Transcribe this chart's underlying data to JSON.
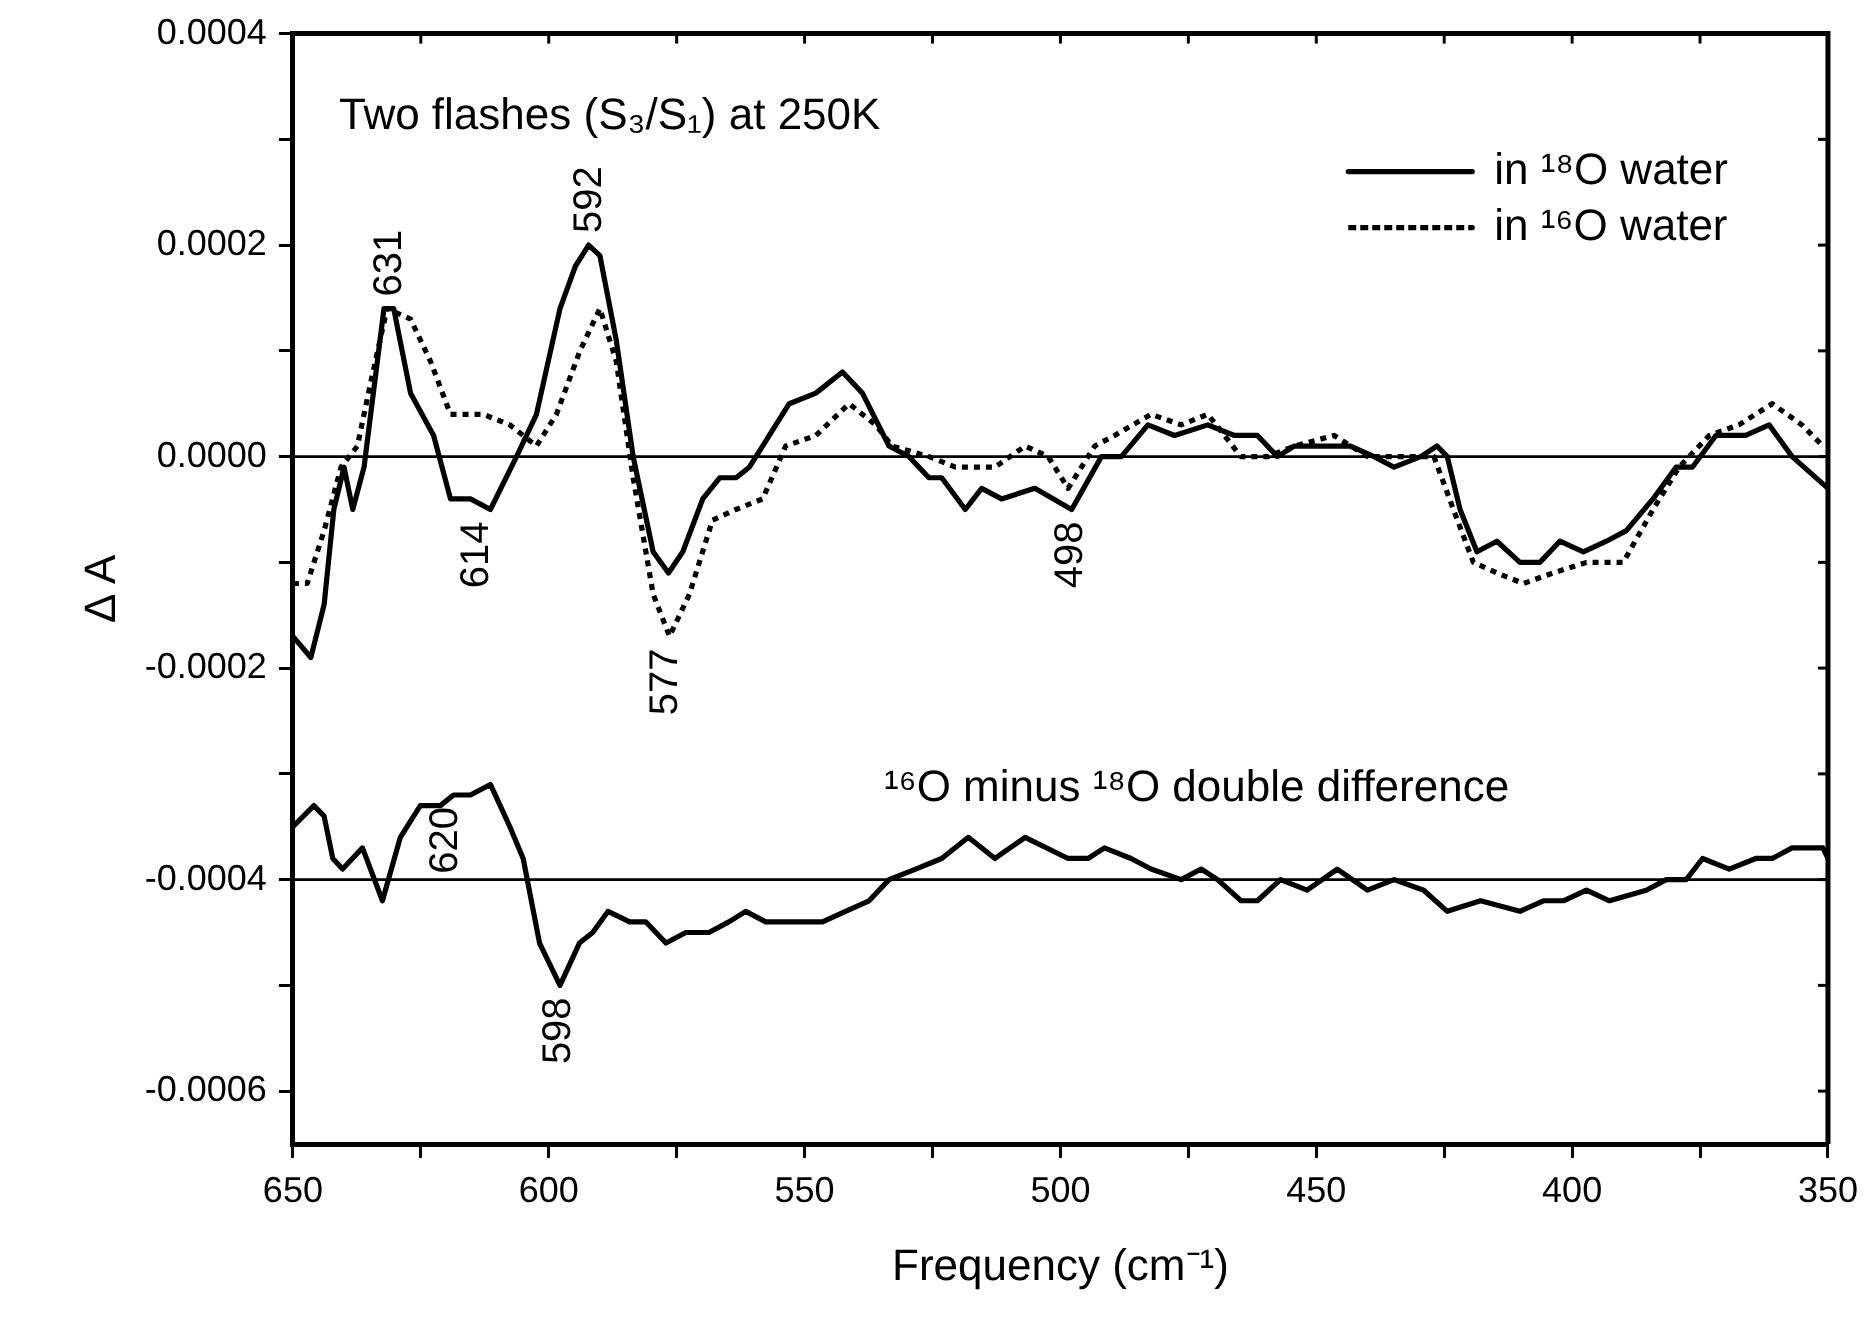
{
  "chart_data": {
    "type": "line",
    "xlabel": "Frequency (cm⁻¹)",
    "ylabel": "Δ A",
    "xlim": [
      650,
      350
    ],
    "xticks": [
      650,
      {
        "value": 625,
        "label": null
      },
      600,
      {
        "value": 575,
        "label": null
      },
      550,
      {
        "value": 525,
        "label": null
      },
      500,
      {
        "value": 475,
        "label": null
      },
      450,
      {
        "value": 425,
        "label": null
      },
      400,
      {
        "value": 375,
        "label": null
      },
      350
    ],
    "ylim": [
      -0.00065,
      0.0004
    ],
    "yticks": [
      {
        "value": -0.0006,
        "label": "-0.0006"
      },
      {
        "value": -0.0005,
        "label": null
      },
      {
        "value": -0.0004,
        "label": "-0.0004"
      },
      {
        "value": -0.0003,
        "label": null
      },
      {
        "value": -0.0002,
        "label": "-0.0002"
      },
      {
        "value": -0.0001,
        "label": null
      },
      {
        "value": 0,
        "label": "0.0000"
      },
      {
        "value": 0.0001,
        "label": null
      },
      {
        "value": 0.0002,
        "label": "0.0002"
      },
      {
        "value": 0.0003,
        "label": null
      },
      {
        "value": 0.0004,
        "label": "0.0004"
      }
    ],
    "grid": false,
    "legend": "top right",
    "marker": "none",
    "series": [
      {
        "name": "in ¹⁸O water",
        "color": "#000000",
        "line_style": "solid",
        "x": [
          650,
          646.5,
          643.9,
          642,
          640,
          638.3,
          636.1,
          632.2,
          630.3,
          627,
          622.5,
          619.2,
          615.3,
          611.4,
          606.3,
          602.4,
          597.8,
          594.8,
          592.2,
          590,
          586.8,
          583.5,
          579.6,
          576.6,
          573.8,
          569.9,
          566.6,
          563.4,
          560.8,
          556.9,
          553,
          547.8,
          542.6,
          538.7,
          533.5,
          529.6,
          525.7,
          523.2,
          518.6,
          515.4,
          511.5,
          505,
          497.8,
          492,
          488.1,
          482.9,
          477.7,
          471.2,
          466,
          461.5,
          457.6,
          454.3,
          449.1,
          443.3,
          438.7,
          434.8,
          429.6,
          426.4,
          424.4,
          421.9,
          418.6,
          414.7,
          410.2,
          406.3,
          402.4,
          397.8,
          393.3,
          389.4,
          384.2,
          379.7,
          376.5,
          371.9,
          366.1,
          361.5,
          357,
          350
        ],
        "values": [
          -0.00017,
          -0.00019,
          -0.00014,
          -5e-05,
          -1e-05,
          -5e-05,
          -1e-05,
          0.00014,
          0.00014,
          6e-05,
          2e-05,
          -4e-05,
          -4e-05,
          -5e-05,
          0,
          4e-05,
          0.00014,
          0.00018,
          0.0002,
          0.00019,
          0.00011,
          0,
          -9e-05,
          -0.00011,
          -9e-05,
          -4e-05,
          -2e-05,
          -2e-05,
          -1e-05,
          2e-05,
          5e-05,
          6e-05,
          8e-05,
          6e-05,
          1e-05,
          0,
          -2e-05,
          -2e-05,
          -5e-05,
          -3e-05,
          -4e-05,
          -3e-05,
          -5e-05,
          0,
          0,
          3e-05,
          2e-05,
          3e-05,
          2e-05,
          2e-05,
          0,
          1e-05,
          1e-05,
          1e-05,
          0,
          -1e-05,
          0,
          1e-05,
          0,
          -5e-05,
          -9e-05,
          -8e-05,
          -0.0001,
          -0.0001,
          -8e-05,
          -9e-05,
          -8e-05,
          -7e-05,
          -4e-05,
          -1e-05,
          -1e-05,
          2e-05,
          2e-05,
          3e-05,
          0,
          -3e-05
        ]
      },
      {
        "name": "in ¹⁶O water",
        "color": "#000000",
        "line_style": "dotted",
        "x": [
          650,
          647.2,
          643.9,
          640.6,
          637.4,
          634.8,
          631.6,
          627,
          623.1,
          619.2,
          612.8,
          607.6,
          602.4,
          598.5,
          593.9,
          590,
          586.8,
          583.5,
          579.6,
          576.4,
          572.5,
          568,
          563.4,
          558.2,
          553.7,
          547.8,
          541.3,
          536.1,
          532.9,
          525.7,
          520.5,
          512.8,
          506.9,
          502.4,
          498.5,
          493.3,
          489.4,
          482.3,
          476.4,
          471.2,
          464.7,
          459.5,
          454.3,
          446.5,
          440,
          433.6,
          427,
          423.2,
          419.3,
          414.7,
          409.5,
          403.7,
          397.2,
          390,
          384.2,
          379.1,
          373.2,
          367.4,
          360.9,
          355.1,
          351
        ],
        "values": [
          -0.00012,
          -0.00012,
          -7e-05,
          -1e-05,
          1e-05,
          7e-05,
          0.00014,
          0.00013,
          9e-05,
          4e-05,
          4e-05,
          3e-05,
          1e-05,
          4e-05,
          0.0001,
          0.00014,
          9e-05,
          -2e-05,
          -0.00013,
          -0.00017,
          -0.00013,
          -6e-05,
          -5e-05,
          -4e-05,
          1e-05,
          2e-05,
          5e-05,
          3e-05,
          1e-05,
          0,
          -1e-05,
          -1e-05,
          1e-05,
          0,
          -3e-05,
          1e-05,
          2e-05,
          4e-05,
          3e-05,
          4e-05,
          0,
          0,
          1e-05,
          2e-05,
          0,
          0,
          0,
          -5e-05,
          -0.0001,
          -0.00011,
          -0.00012,
          -0.00011,
          -0.0001,
          -0.0001,
          -5e-05,
          -1e-05,
          2e-05,
          3e-05,
          5e-05,
          3e-05,
          1e-05
        ]
      },
      {
        "color": "#000000",
        "line_style": "solid",
        "x": [
          650,
          645.9,
          643.9,
          642.2,
          640.3,
          636.4,
          632.5,
          629,
          625.1,
          621.2,
          618.6,
          615.3,
          611.4,
          607.6,
          605,
          601.8,
          597.8,
          594,
          591.4,
          588.4,
          584.2,
          581,
          577.1,
          573.2,
          568.7,
          564.8,
          561.5,
          557.6,
          553.7,
          546.5,
          542,
          537.4,
          533.5,
          528.3,
          523.2,
          518,
          512.8,
          506.9,
          498.5,
          494.6,
          491.4,
          486.2,
          482.3,
          476.4,
          472.5,
          469.3,
          464.7,
          461.5,
          457,
          451.8,
          445.9,
          440,
          434.8,
          429,
          424.4,
          417.9,
          410.2,
          405.6,
          401.7,
          397.2,
          392.7,
          385.5,
          381.6,
          377.7,
          374.5,
          369.3,
          364.1,
          360.9,
          357,
          353.1,
          351,
          350
        ],
        "values": [
          -0.00035,
          -0.00033,
          -0.00034,
          -0.00038,
          -0.00039,
          -0.00037,
          -0.00042,
          -0.00036,
          -0.00033,
          -0.00033,
          -0.00032,
          -0.00032,
          -0.00031,
          -0.00035,
          -0.00038,
          -0.00046,
          -0.0005,
          -0.00046,
          -0.00045,
          -0.00043,
          -0.00044,
          -0.00044,
          -0.00046,
          -0.00045,
          -0.00045,
          -0.00044,
          -0.00043,
          -0.00044,
          -0.00044,
          -0.00044,
          -0.00043,
          -0.00042,
          -0.0004,
          -0.00039,
          -0.00038,
          -0.00036,
          -0.00038,
          -0.00036,
          -0.00038,
          -0.00038,
          -0.00037,
          -0.00038,
          -0.00039,
          -0.0004,
          -0.00039,
          -0.0004,
          -0.00042,
          -0.00042,
          -0.0004,
          -0.00041,
          -0.00039,
          -0.00041,
          -0.0004,
          -0.00041,
          -0.00043,
          -0.00042,
          -0.00043,
          -0.00042,
          -0.00042,
          -0.00041,
          -0.00042,
          -0.00041,
          -0.0004,
          -0.0004,
          -0.00038,
          -0.00039,
          -0.00038,
          -0.00038,
          -0.00037,
          -0.00037,
          -0.00037,
          -0.00038
        ]
      }
    ],
    "ref_lines": [
      {
        "axis": "y",
        "value": 0,
        "color": "#000000",
        "line_style": "solid"
      },
      {
        "axis": "y",
        "value": -0.0004,
        "color": "#000000",
        "line_style": "solid"
      }
    ],
    "annotations": [
      "Two flashes (S₃/S₁) at 250K",
      "¹⁶O minus ¹⁸O double difference",
      {
        "text": "631",
        "x": 631,
        "y": 0.00014
      },
      {
        "text": "592",
        "x": 592,
        "y": 0.0002
      },
      {
        "text": "614",
        "x": 614,
        "y": -5e-05
      },
      {
        "text": "577",
        "x": 577,
        "y": -0.00017
      },
      {
        "text": "498",
        "x": 498,
        "y": -5e-05
      },
      {
        "text": "620",
        "x": 620,
        "y": -0.00032
      },
      {
        "text": "598",
        "x": 598,
        "y": -0.0005
      }
    ]
  }
}
